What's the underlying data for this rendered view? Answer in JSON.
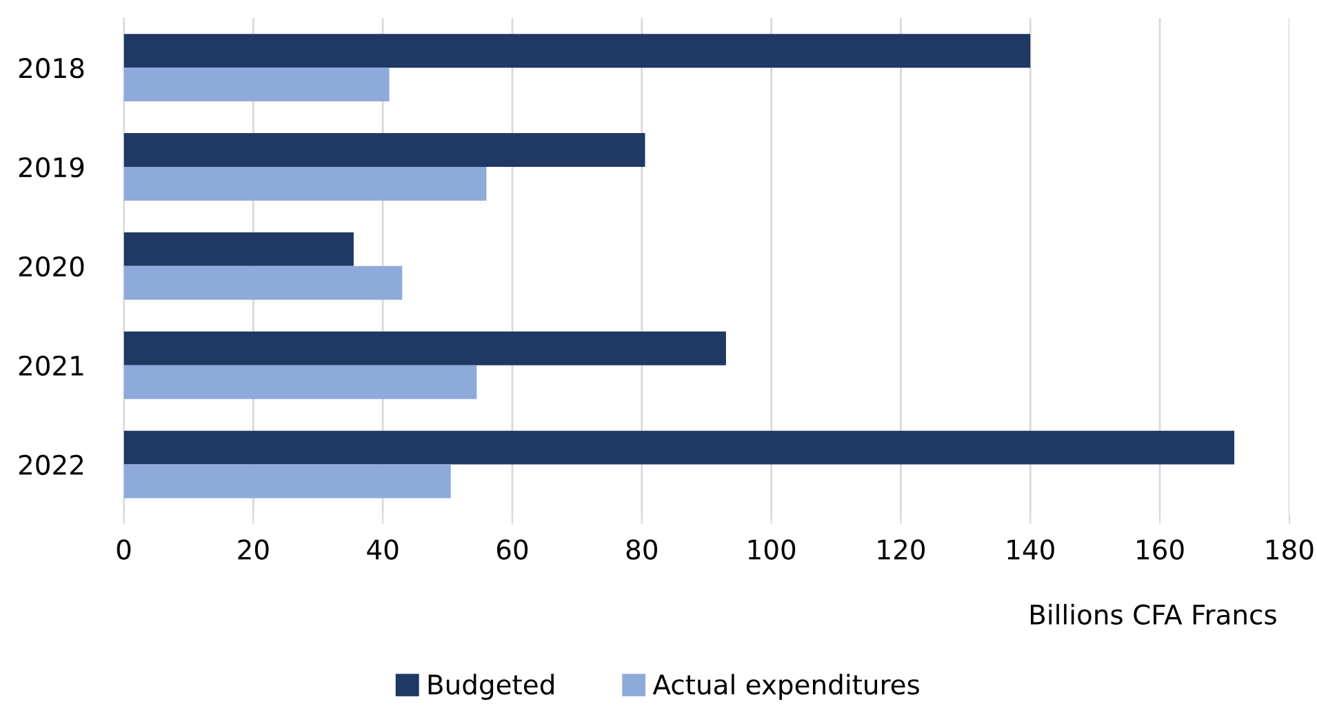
{
  "chart_data": {
    "type": "bar",
    "orientation": "horizontal",
    "xlabel": "Billions CFA Francs",
    "categories": [
      "2018",
      "2019",
      "2020",
      "2021",
      "2022"
    ],
    "series": [
      {
        "name": "Budgeted",
        "color": "#1f3864",
        "values": [
          140,
          80.5,
          35.5,
          93,
          171.5
        ]
      },
      {
        "name": "Actual expenditures",
        "color": "#8eaadb",
        "values": [
          41,
          56,
          43,
          54.5,
          50.5
        ]
      }
    ],
    "xlim": [
      0,
      180
    ],
    "xticks": [
      0,
      20,
      40,
      60,
      80,
      100,
      120,
      140,
      160,
      180
    ],
    "grid": "x",
    "legend": "bottom"
  }
}
